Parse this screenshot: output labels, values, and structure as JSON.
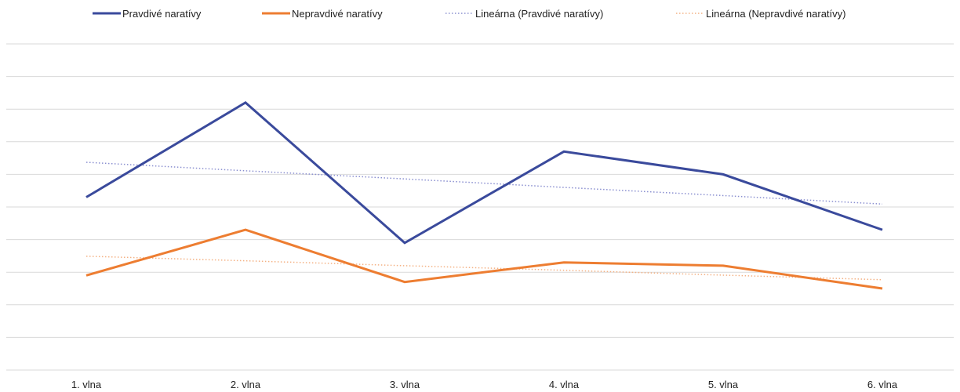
{
  "chart_data": {
    "type": "line",
    "title": "",
    "xlabel": "",
    "ylabel": "",
    "categories": [
      "1. vlna",
      "2. vlna",
      "3. vlna",
      "4. vlna",
      "5. vlna",
      "6. vlna"
    ],
    "ylim": [
      0,
      10
    ],
    "grid": true,
    "y_tick_labels_shown": false,
    "legend": "top",
    "series": [
      {
        "name": "Pravdivé naratívy",
        "values": [
          5.3,
          8.2,
          3.9,
          6.7,
          6.0,
          4.3
        ],
        "color": "#3a4a9c",
        "style": "solid"
      },
      {
        "name": "Nepravdivé naratívy",
        "values": [
          2.9,
          4.3,
          2.7,
          3.3,
          3.2,
          2.5
        ],
        "color": "#ed7d31",
        "style": "solid"
      }
    ],
    "trendlines": [
      {
        "name": "Lineárna (Pravdivé naratívy)",
        "of": "Pravdivé naratívy",
        "values": [
          6.37,
          6.11,
          5.86,
          5.6,
          5.35,
          5.09
        ],
        "color": "#8a8fd0",
        "style": "dotted"
      },
      {
        "name": "Lineárna (Nepravdivé naratívy)",
        "of": "Nepravdivé naratívy",
        "values": [
          3.49,
          3.35,
          3.2,
          3.06,
          2.91,
          2.77
        ],
        "color": "#f4b183",
        "style": "dotted"
      }
    ]
  }
}
